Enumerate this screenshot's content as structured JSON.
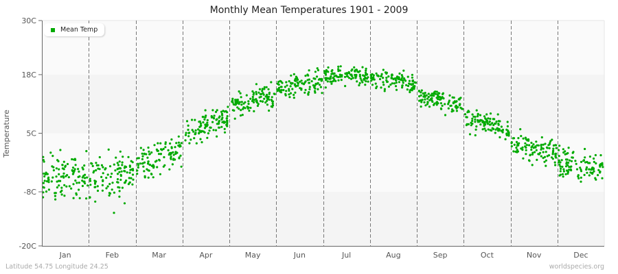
{
  "chart_data": {
    "type": "scatter",
    "title": "Monthly Mean Temperatures 1901 - 2009",
    "xlabel": "",
    "ylabel": "Temperature",
    "ylim": [
      -20,
      30
    ],
    "yticks": [
      {
        "value": 30,
        "label": "30C"
      },
      {
        "value": 18,
        "label": "18C"
      },
      {
        "value": 5,
        "label": "5C"
      },
      {
        "value": -8,
        "label": "-8C"
      },
      {
        "value": -20,
        "label": "-20C"
      }
    ],
    "categories": [
      "Jan",
      "Feb",
      "Mar",
      "Apr",
      "May",
      "Jun",
      "Jul",
      "Aug",
      "Sep",
      "Oct",
      "Nov",
      "Dec"
    ],
    "legend": {
      "position": "top-left",
      "entries": [
        "Mean Temp"
      ]
    },
    "grid": {
      "horizontal_bands": true,
      "vertical_dashed_month_separators": true
    },
    "series": [
      {
        "name": "Mean Temp",
        "color": "#00aa00",
        "points_per_month": 109,
        "monthly_mean": [
          -5.0,
          -4.5,
          -0.5,
          6.5,
          12.5,
          16.0,
          18.0,
          17.0,
          12.5,
          7.0,
          1.5,
          -2.5
        ],
        "monthly_min": [
          -16.5,
          -17.0,
          -9.5,
          0.0,
          7.5,
          12.0,
          13.5,
          13.5,
          8.5,
          2.0,
          -4.5,
          -10.0
        ],
        "monthly_max": [
          1.5,
          1.5,
          5.5,
          11.5,
          17.5,
          20.0,
          21.0,
          21.0,
          15.5,
          10.5,
          6.0,
          3.5
        ],
        "monthly_spread": [
          3.8,
          3.8,
          2.9,
          2.2,
          2.0,
          1.6,
          1.5,
          1.5,
          1.4,
          1.7,
          2.0,
          2.4
        ]
      }
    ]
  },
  "header": {
    "title": "Monthly Mean Temperatures 1901 - 2009"
  },
  "legend": {
    "label": "Mean Temp",
    "color": "#00aa00"
  },
  "footer": {
    "location": "Latitude 54.75 Longitude 24.25",
    "source": "worldspecies.org"
  },
  "colors": {
    "band_light": "#fafafa",
    "band_dark": "#f4f4f4",
    "axis": "#666666",
    "separator": "#777777",
    "dot": "#00aa00"
  }
}
